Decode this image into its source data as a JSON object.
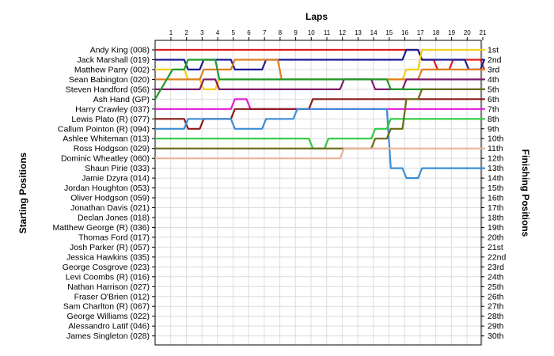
{
  "chart_data": {
    "type": "line",
    "title": "",
    "xlabel": "Laps",
    "ylabel_left": "Starting Positions",
    "ylabel_right": "Finishing Positions",
    "x_ticks": [
      "1",
      "2",
      "3",
      "4",
      "5",
      "6",
      "7",
      "8",
      "9",
      "10",
      "11",
      "12",
      "13",
      "14",
      "15",
      "16",
      "17",
      "18",
      "19",
      "20",
      "21"
    ],
    "y_range": [
      1,
      30
    ],
    "grid": true,
    "y_inverted": true,
    "start_labels": [
      "Andy King (008)",
      "Jack Marshall (019)",
      "Matthew Parry (002)",
      "Sean Babington (020)",
      "Steven Handford (056)",
      "Ash Hand (GP)",
      "Harry Crawley (037)",
      "Lewis Plato (R) (077)",
      "Callum Pointon  (R) (094)",
      "Ashlee Whiteman (013)",
      "Ross Hodgson (029)",
      "Dominic Wheatley (060)",
      "Shaun Pirie (033)",
      "Jamie Dzyra (014)",
      "Jordan Houghton (053)",
      "Oliver Hodgson (059)",
      "Jonathan Davis (021)",
      "Declan Jones (018)",
      "Matthew George (R) (036)",
      "Thomas Ford (017)",
      "Josh Parker (R) (057)",
      "Jessica Hawkins (035)",
      "George Cosgrove (023)",
      "Levi Coombs  (R) (016)",
      "Nathan Harrison (027)",
      "Fraser O'Brien (012)",
      "Sam Charlton  (R) (067)",
      "George Williams (022)",
      "Alessandro Latif (046)",
      "James Singleton (028)"
    ],
    "finish_labels": [
      "1st",
      "2nd",
      "3rd",
      "4th",
      "5th",
      "6th",
      "7th",
      "8th",
      "9th",
      "10th",
      "11th",
      "12th",
      "13th",
      "14th",
      "15th",
      "16th",
      "17th",
      "18th",
      "19th",
      "20th",
      "21st",
      "22nd",
      "23rd",
      "24th",
      "25th",
      "26th",
      "27th",
      "28th",
      "29th",
      "30th"
    ],
    "series": [
      {
        "color": "#e01b1b",
        "values": [
          1,
          1,
          1,
          1,
          1,
          1,
          1,
          1,
          1,
          1,
          1,
          1,
          1,
          1,
          1,
          1,
          2,
          3,
          2,
          2,
          3
        ]
      },
      {
        "color": "#1c1c96",
        "values": [
          2,
          3,
          2,
          2,
          3,
          3,
          2,
          2,
          2,
          2,
          2,
          2,
          2,
          2,
          2,
          1,
          2,
          2,
          2,
          3,
          2
        ]
      },
      {
        "color": "#f5cf17",
        "values": [
          3,
          4,
          5,
          4,
          4,
          4,
          4,
          4,
          4,
          4,
          4,
          4,
          4,
          4,
          4,
          3,
          1,
          1,
          1,
          1,
          1
        ]
      },
      {
        "color": "#e07f20",
        "values": [
          4,
          4,
          3,
          3,
          2,
          2,
          2,
          4,
          4,
          4,
          4,
          4,
          4,
          4,
          4,
          4,
          3,
          3,
          3,
          3,
          3
        ]
      },
      {
        "color": "#7f1b6c",
        "values": [
          5,
          5,
          4,
          5,
          5,
          5,
          5,
          5,
          5,
          5,
          5,
          4,
          4,
          5,
          5,
          4,
          4,
          4,
          4,
          4,
          4
        ]
      },
      {
        "color": "#1e9a2c",
        "values": [
          3,
          2,
          2,
          4,
          4,
          4,
          4,
          4,
          4,
          4,
          4,
          4,
          4,
          4,
          5,
          5,
          5,
          5,
          5,
          5,
          5
        ]
      },
      {
        "color": "#e01bd6",
        "values": [
          7,
          7,
          7,
          7,
          6,
          7,
          7,
          7,
          7,
          7,
          7,
          7,
          7,
          7,
          7,
          7,
          7,
          7,
          7,
          7,
          7
        ]
      },
      {
        "color": "#8a1b1b",
        "values": [
          8,
          9,
          8,
          8,
          7,
          7,
          7,
          7,
          7,
          6,
          6,
          6,
          6,
          6,
          6,
          6,
          6,
          6,
          6,
          6,
          6
        ]
      },
      {
        "color": "#3a8ed6",
        "values": [
          9,
          8,
          8,
          8,
          9,
          9,
          8,
          8,
          7,
          7,
          7,
          7,
          7,
          7,
          13,
          14,
          13,
          13,
          13,
          13,
          13
        ]
      },
      {
        "color": "#2ecc40",
        "values": [
          10,
          10,
          10,
          10,
          10,
          10,
          10,
          10,
          10,
          11,
          10,
          10,
          10,
          9,
          8,
          8,
          8,
          8,
          8,
          8,
          8
        ]
      },
      {
        "color": "#6b6b14",
        "values": [
          11,
          11,
          11,
          11,
          11,
          11,
          11,
          11,
          11,
          11,
          11,
          11,
          11,
          10,
          9,
          6,
          5,
          5,
          5,
          5,
          5
        ]
      },
      {
        "color": "#ebb39a",
        "values": [
          12,
          12,
          12,
          12,
          12,
          12,
          12,
          12,
          12,
          12,
          12,
          11,
          11,
          11,
          11,
          11,
          11,
          11,
          11,
          11,
          11
        ]
      }
    ]
  }
}
